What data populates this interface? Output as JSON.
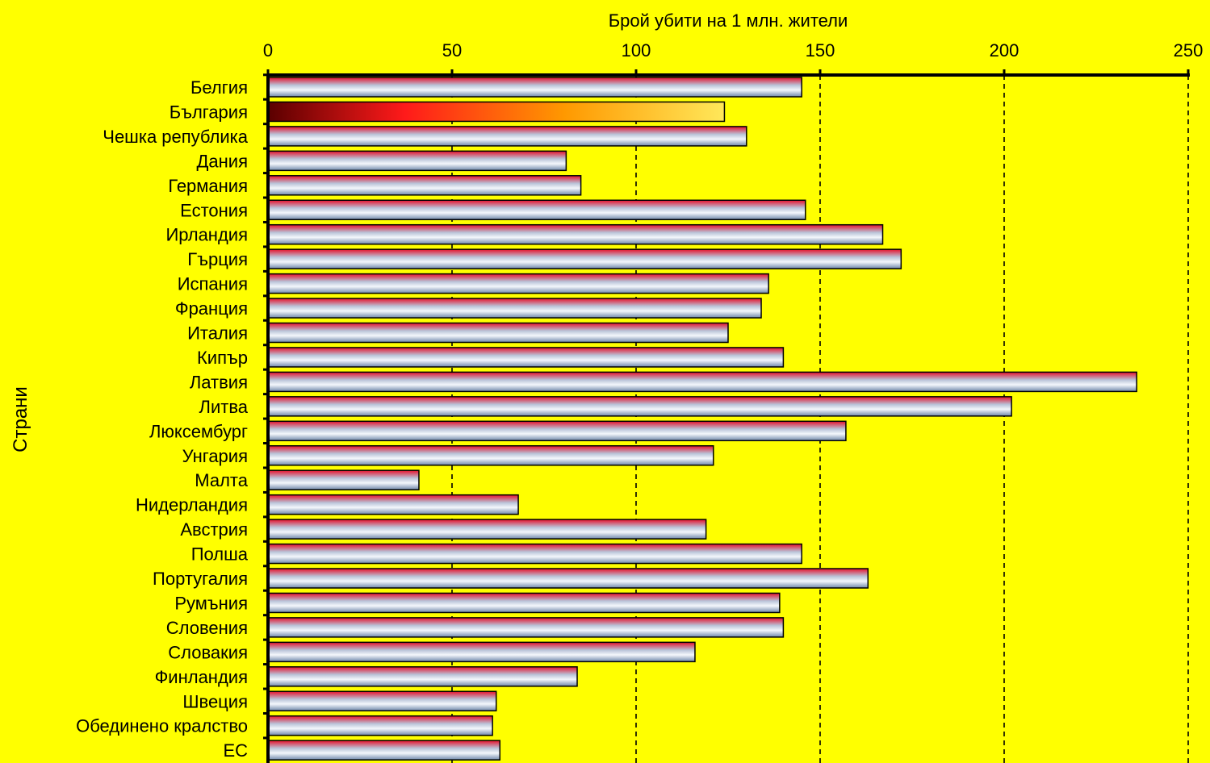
{
  "chart_data": {
    "type": "bar",
    "orientation": "horizontal",
    "title": "",
    "xlabel": "Брой убити на 1 млн. жители",
    "ylabel": "Страни",
    "xlim": [
      0,
      250
    ],
    "x_ticks": [
      0,
      50,
      100,
      150,
      200,
      250
    ],
    "grid": "vertical dashed",
    "legend": "none",
    "categories": [
      "Белгия",
      "България",
      "Чешка република",
      "Дания",
      "Германия",
      "Естония",
      "Ирландия",
      "Гърция",
      "Испания",
      "Франция",
      "Италия",
      "Кипър",
      "Латвия",
      "Литва",
      "Люксембург",
      "Унгария",
      "Малта",
      "Нидерландия",
      "Австрия",
      "Полша",
      "Португалия",
      "Румъния",
      "Словения",
      "Словакия",
      "Финландия",
      "Швеция",
      "Обединено кралство",
      "ЕС"
    ],
    "values": [
      145,
      124,
      130,
      81,
      85,
      146,
      167,
      172,
      136,
      134,
      125,
      140,
      236,
      202,
      157,
      121,
      41,
      68,
      119,
      145,
      163,
      139,
      140,
      116,
      84,
      62,
      61,
      63
    ],
    "highlight_category": "България",
    "colors": {
      "background": "#FFFF00",
      "bar_gradient": [
        "#E8102A",
        "#B9C3D8",
        "#F4F7FC",
        "#6F87AA"
      ],
      "highlight_gradient": [
        "#5A0000",
        "#FF1A1A",
        "#FF9900",
        "#FFE85A"
      ]
    }
  }
}
